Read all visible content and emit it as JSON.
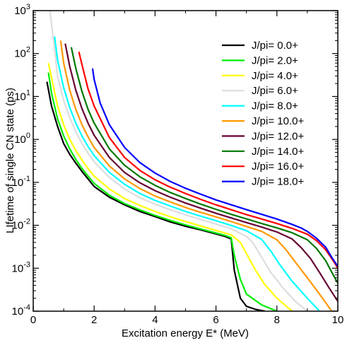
{
  "chart_data": {
    "type": "line",
    "title": "",
    "xlabel": "Excitation energy E* (MeV)",
    "ylabel": "LIfetime of single CN state (ps)",
    "xlim": [
      0,
      10
    ],
    "ylim": [
      0.0001,
      1000
    ],
    "yscale": "log",
    "grid": false,
    "legend_position": "top-right",
    "x_ticks": [
      0,
      2,
      4,
      6,
      8,
      10
    ],
    "x_tick_labels": [
      "0",
      "2",
      "4",
      "6",
      "8",
      "10"
    ],
    "y_ticks": [
      {
        "value": 0.0001,
        "base": "10",
        "exp": "-4"
      },
      {
        "value": 0.001,
        "base": "10",
        "exp": "-3"
      },
      {
        "value": 0.01,
        "base": "10",
        "exp": "-2"
      },
      {
        "value": 0.1,
        "base": "10",
        "exp": "-1"
      },
      {
        "value": 1,
        "base": "10",
        "exp": "0"
      },
      {
        "value": 10,
        "base": "10",
        "exp": "1"
      },
      {
        "value": 100,
        "base": "10",
        "exp": "2"
      },
      {
        "value": 1000,
        "base": "10",
        "exp": "3"
      }
    ],
    "series": [
      {
        "name": "J/pi=  0.0+",
        "color": "#000000",
        "x": [
          0.45,
          0.6,
          0.8,
          1.0,
          1.2,
          1.4,
          1.6,
          1.8,
          2.0,
          2.5,
          3.0,
          3.5,
          4.0,
          4.5,
          5.0,
          5.5,
          6.0,
          6.3,
          6.5,
          6.6,
          6.8,
          7.0,
          7.3,
          7.6
        ],
        "y": [
          22,
          6,
          2,
          0.8,
          0.45,
          0.28,
          0.18,
          0.12,
          0.08,
          0.045,
          0.03,
          0.021,
          0.016,
          0.012,
          0.0095,
          0.0078,
          0.0063,
          0.0055,
          0.0048,
          0.0009,
          0.0002,
          0.00013,
          0.00011,
          0.0001
        ]
      },
      {
        "name": "J/pi=  2.0+",
        "color": "#00ee00",
        "x": [
          0.5,
          0.6,
          0.8,
          1.0,
          1.2,
          1.4,
          1.6,
          1.8,
          2.0,
          2.5,
          3.0,
          3.5,
          4.0,
          4.5,
          5.0,
          5.5,
          6.0,
          6.3,
          6.5,
          6.6,
          6.8,
          7.0,
          7.5,
          8.0
        ],
        "y": [
          36,
          12,
          3,
          1.2,
          0.6,
          0.34,
          0.21,
          0.14,
          0.095,
          0.05,
          0.032,
          0.023,
          0.017,
          0.013,
          0.0102,
          0.0082,
          0.0066,
          0.0058,
          0.0051,
          0.002,
          0.00055,
          0.00025,
          0.00014,
          0.0001
        ]
      },
      {
        "name": "J/pi=  4.0+",
        "color": "#ffff00",
        "x": [
          0.5,
          0.8,
          1.0,
          1.2,
          1.4,
          1.6,
          1.8,
          2.0,
          2.5,
          3.0,
          3.5,
          4.0,
          4.5,
          5.0,
          5.5,
          6.0,
          6.5,
          6.8,
          7.0,
          7.3,
          7.6,
          8.0,
          8.5
        ],
        "y": [
          60,
          6,
          2.2,
          1.0,
          0.55,
          0.33,
          0.21,
          0.14,
          0.07,
          0.042,
          0.029,
          0.021,
          0.0158,
          0.0122,
          0.0096,
          0.0076,
          0.006,
          0.004,
          0.0022,
          0.0009,
          0.00042,
          0.0002,
          0.0001
        ]
      },
      {
        "name": "J/pi=  6.0+",
        "color": "#dddddd",
        "x": [
          0.55,
          0.8,
          1.0,
          1.2,
          1.4,
          1.6,
          1.8,
          2.0,
          2.5,
          3.0,
          3.5,
          4.0,
          4.5,
          5.0,
          5.5,
          6.0,
          6.5,
          7.0,
          7.2,
          7.5,
          7.8,
          8.2,
          8.6,
          9.0
        ],
        "y": [
          1000,
          30,
          8,
          3.2,
          1.5,
          0.8,
          0.48,
          0.3,
          0.13,
          0.07,
          0.044,
          0.031,
          0.023,
          0.0175,
          0.0136,
          0.0107,
          0.0083,
          0.0055,
          0.004,
          0.0018,
          0.0008,
          0.00035,
          0.00017,
          0.0001
        ]
      },
      {
        "name": "J/pi=  8.0+",
        "color": "#00ffff",
        "x": [
          0.7,
          0.8,
          1.0,
          1.2,
          1.4,
          1.6,
          1.8,
          2.0,
          2.5,
          3.0,
          3.5,
          4.0,
          4.5,
          5.0,
          5.5,
          6.0,
          6.5,
          7.0,
          7.5,
          7.8,
          8.1,
          8.5,
          9.0,
          9.4
        ],
        "y": [
          250,
          70,
          16,
          5.5,
          2.4,
          1.2,
          0.68,
          0.42,
          0.17,
          0.09,
          0.055,
          0.038,
          0.028,
          0.021,
          0.0163,
          0.0128,
          0.0099,
          0.0075,
          0.0047,
          0.0025,
          0.0012,
          0.0005,
          0.0002,
          0.0001
        ]
      },
      {
        "name": "J/pi= 10.0+",
        "color": "#ff9900",
        "x": [
          0.9,
          1.0,
          1.2,
          1.4,
          1.6,
          1.8,
          2.0,
          2.5,
          3.0,
          3.5,
          4.0,
          4.5,
          5.0,
          5.5,
          6.0,
          6.5,
          7.0,
          7.5,
          8.0,
          8.3,
          8.6,
          9.0,
          9.4,
          9.8
        ],
        "y": [
          200,
          60,
          14,
          5,
          2.2,
          1.15,
          0.65,
          0.24,
          0.12,
          0.072,
          0.048,
          0.035,
          0.026,
          0.02,
          0.0157,
          0.0122,
          0.0094,
          0.0072,
          0.0046,
          0.0027,
          0.0014,
          0.0006,
          0.00025,
          0.0001
        ]
      },
      {
        "name": "J/pi= 12.0+",
        "color": "#660033",
        "x": [
          1.05,
          1.2,
          1.4,
          1.6,
          1.8,
          2.0,
          2.5,
          3.0,
          3.5,
          4.0,
          4.5,
          5.0,
          5.5,
          6.0,
          6.5,
          7.0,
          7.5,
          8.0,
          8.5,
          8.8,
          9.1,
          9.4,
          9.7,
          10.0
        ],
        "y": [
          170,
          50,
          14,
          5.2,
          2.4,
          1.25,
          0.38,
          0.17,
          0.098,
          0.064,
          0.045,
          0.033,
          0.025,
          0.019,
          0.0148,
          0.0116,
          0.0091,
          0.007,
          0.0048,
          0.003,
          0.0017,
          0.0008,
          0.00036,
          0.00017
        ]
      },
      {
        "name": "J/pi= 14.0+",
        "color": "#007700",
        "x": [
          1.25,
          1.4,
          1.6,
          1.8,
          2.0,
          2.5,
          3.0,
          3.5,
          4.0,
          4.5,
          5.0,
          5.5,
          6.0,
          6.5,
          7.0,
          7.5,
          8.0,
          8.5,
          9.0,
          9.3,
          9.6,
          9.85,
          10.0
        ],
        "y": [
          140,
          45,
          13,
          5,
          2.4,
          0.6,
          0.25,
          0.135,
          0.085,
          0.058,
          0.042,
          0.031,
          0.0235,
          0.018,
          0.0141,
          0.011,
          0.0087,
          0.0067,
          0.0046,
          0.0029,
          0.0015,
          0.0007,
          0.00045
        ]
      },
      {
        "name": "J/pi= 16.0+",
        "color": "#ff0000",
        "x": [
          1.5,
          1.6,
          1.8,
          2.0,
          2.5,
          3.0,
          3.5,
          4.0,
          4.5,
          5.0,
          5.5,
          6.0,
          6.5,
          7.0,
          7.5,
          8.0,
          8.5,
          9.0,
          9.3,
          9.6,
          9.85,
          10.0
        ],
        "y": [
          110,
          55,
          15,
          6,
          1.1,
          0.38,
          0.19,
          0.115,
          0.077,
          0.055,
          0.04,
          0.03,
          0.023,
          0.0178,
          0.014,
          0.011,
          0.0085,
          0.0062,
          0.0044,
          0.0027,
          0.0015,
          0.001
        ]
      },
      {
        "name": "J/pi= 18.0+",
        "color": "#0000ff",
        "x": [
          1.95,
          2.0,
          2.2,
          2.5,
          3.0,
          3.5,
          4.0,
          4.5,
          5.0,
          5.5,
          6.0,
          6.5,
          7.0,
          7.5,
          8.0,
          8.5,
          8.8,
          9.0,
          9.3,
          9.6,
          9.8,
          10.0
        ],
        "y": [
          45,
          25,
          7,
          2.2,
          0.65,
          0.29,
          0.165,
          0.105,
          0.073,
          0.053,
          0.039,
          0.03,
          0.0232,
          0.018,
          0.014,
          0.0105,
          0.0086,
          0.0072,
          0.005,
          0.0031,
          0.0018,
          0.0011
        ]
      }
    ]
  }
}
